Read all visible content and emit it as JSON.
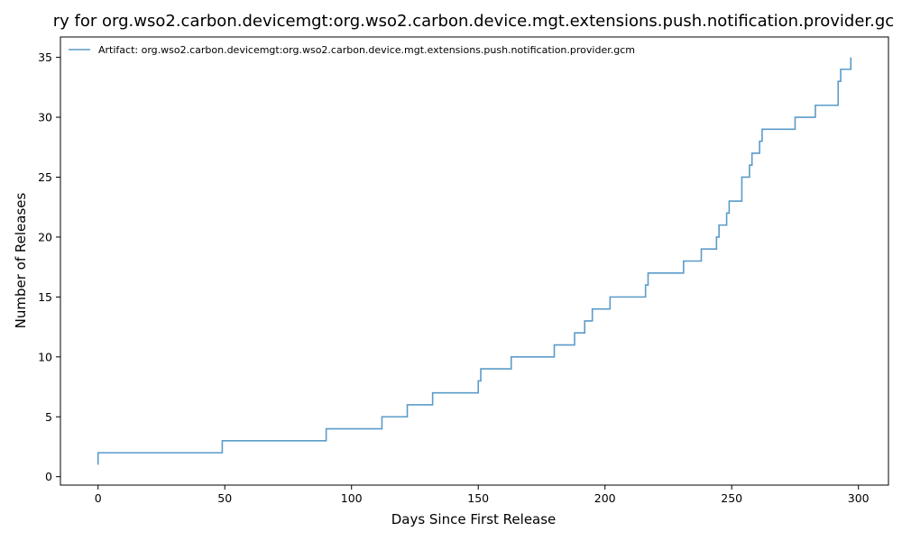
{
  "chart_data": {
    "type": "line",
    "step": true,
    "title": "ry for org.wso2.carbon.devicemgt:org.wso2.carbon.device.mgt.extensions.push.notification.provider.gc",
    "xlabel": "Days Since First Release",
    "ylabel": "Number of Releases",
    "xlim": [
      -14.85,
      311.85
    ],
    "ylim": [
      -0.7,
      36.7
    ],
    "xticks": [
      0,
      50,
      100,
      150,
      200,
      250,
      300
    ],
    "yticks": [
      0,
      5,
      10,
      15,
      20,
      25,
      30,
      35
    ],
    "grid": false,
    "legend_position": "top-left",
    "series": [
      {
        "name": "Artifact: org.wso2.carbon.devicemgt:org.wso2.carbon.device.mgt.extensions.push.notification.provider.gcm",
        "color": "#5b9bc9",
        "x": [
          0,
          0,
          49,
          90,
          112,
          122,
          132,
          150,
          151,
          163,
          180,
          188,
          192,
          195,
          202,
          216,
          217,
          231,
          238,
          244,
          245,
          248,
          249,
          254,
          257,
          258,
          261,
          262,
          275,
          283,
          292,
          293,
          297
        ],
        "y": [
          1,
          2,
          3,
          4,
          5,
          6,
          7,
          8,
          9,
          10,
          11,
          12,
          13,
          14,
          15,
          16,
          17,
          18,
          19,
          20,
          21,
          22,
          23,
          25,
          26,
          27,
          28,
          29,
          30,
          31,
          33,
          34,
          35
        ]
      }
    ]
  }
}
